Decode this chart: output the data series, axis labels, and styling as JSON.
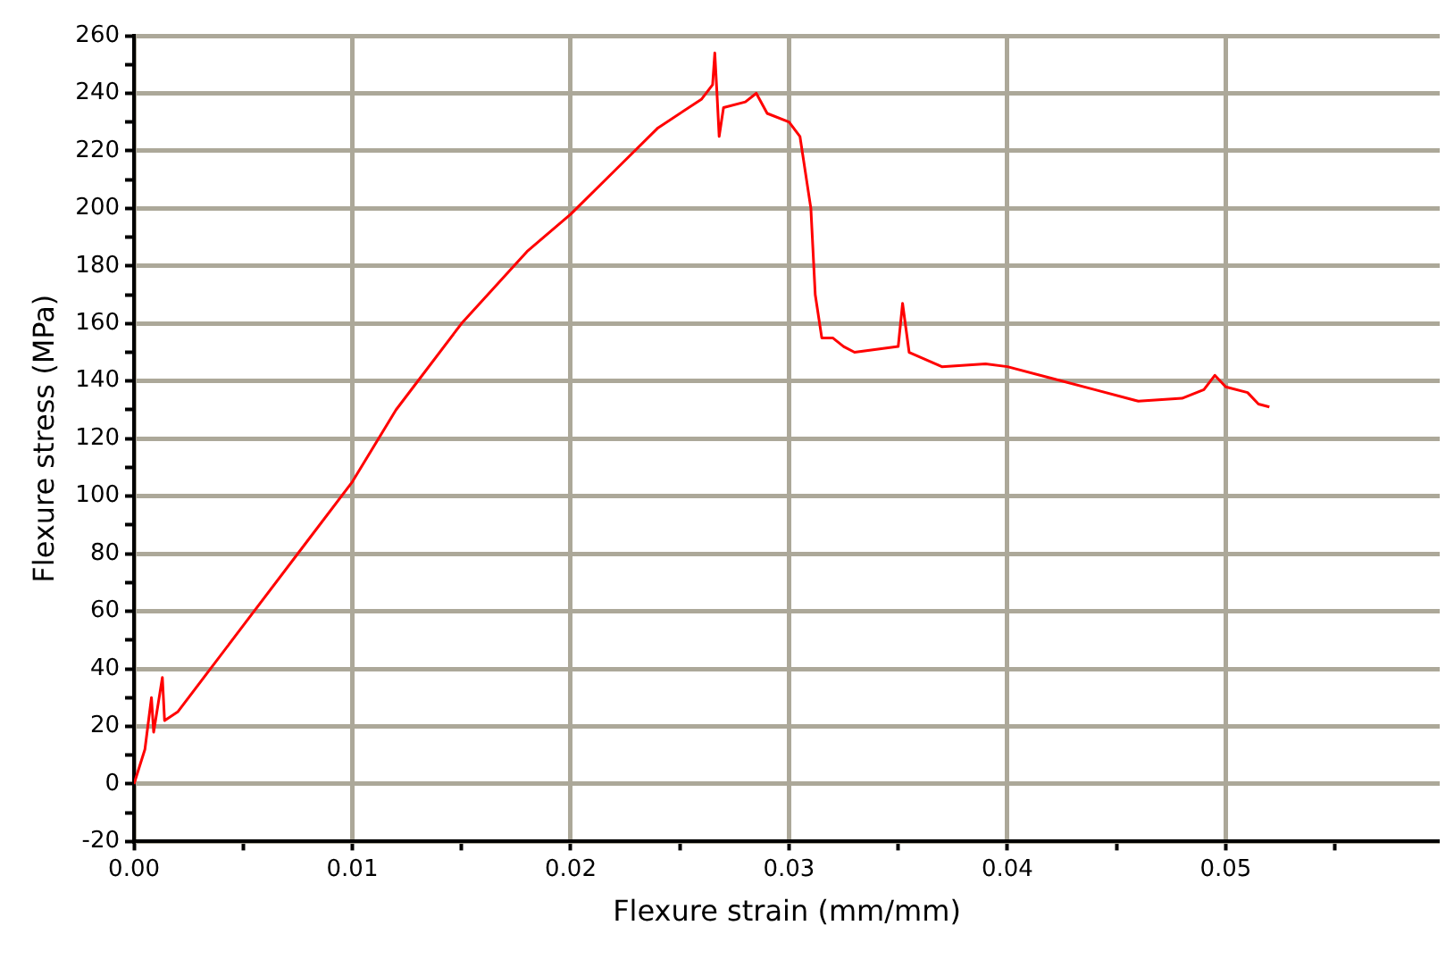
{
  "chart_data": {
    "type": "line",
    "xlabel": "Flexure strain (mm/mm)",
    "ylabel": "Flexure stress (MPa)",
    "xlim": [
      0,
      0.0598
    ],
    "ylim": [
      -20,
      260
    ],
    "xticks": [
      {
        "value": 0,
        "label": "0.00"
      },
      {
        "value": 0.005,
        "label": null
      },
      {
        "value": 0.01,
        "label": "0.01"
      },
      {
        "value": 0.015,
        "label": null
      },
      {
        "value": 0.02,
        "label": "0.02"
      },
      {
        "value": 0.025,
        "label": null
      },
      {
        "value": 0.03,
        "label": "0.03"
      },
      {
        "value": 0.035,
        "label": null
      },
      {
        "value": 0.04,
        "label": "0.04"
      },
      {
        "value": 0.045,
        "label": null
      },
      {
        "value": 0.05,
        "label": "0.05"
      },
      {
        "value": 0.055,
        "label": null
      }
    ],
    "yticks": [
      -20,
      {
        "value": -10,
        "label": null
      },
      0,
      {
        "value": 10,
        "label": null
      },
      20,
      {
        "value": 30,
        "label": null
      },
      40,
      {
        "value": 50,
        "label": null
      },
      60,
      {
        "value": 70,
        "label": null
      },
      80,
      {
        "value": 90,
        "label": null
      },
      100,
      {
        "value": 110,
        "label": null
      },
      120,
      {
        "value": 130,
        "label": null
      },
      140,
      {
        "value": 150,
        "label": null
      },
      160,
      {
        "value": 170,
        "label": null
      },
      180,
      {
        "value": 190,
        "label": null
      },
      200,
      {
        "value": 210,
        "label": null
      },
      220,
      {
        "value": 230,
        "label": null
      },
      240,
      {
        "value": 250,
        "label": null
      },
      260
    ],
    "grid": true,
    "marker": "none",
    "line_style": "solid",
    "x": [
      0,
      0.0005,
      0.0008,
      0.0009,
      0.0013,
      0.0014,
      0.002,
      0.005,
      0.008,
      0.01,
      0.012,
      0.015,
      0.018,
      0.02,
      0.022,
      0.024,
      0.026,
      0.0265,
      0.0266,
      0.0267,
      0.0268,
      0.027,
      0.028,
      0.0285,
      0.029,
      0.03,
      0.0305,
      0.031,
      0.0312,
      0.0315,
      0.032,
      0.0325,
      0.033,
      0.035,
      0.0352,
      0.0355,
      0.037,
      0.039,
      0.04,
      0.042,
      0.044,
      0.046,
      0.048,
      0.049,
      0.0495,
      0.05,
      0.051,
      0.0515,
      0.052
    ],
    "series": [
      {
        "color": "#ff0000",
        "values": [
          0,
          12,
          30,
          18,
          37,
          22,
          25,
          55,
          85,
          105,
          130,
          160,
          185,
          198,
          213,
          228,
          238,
          243,
          254,
          240,
          225,
          235,
          237,
          240,
          233,
          230,
          225,
          200,
          170,
          155,
          155,
          152,
          150,
          152,
          167,
          150,
          145,
          146,
          145,
          141,
          137,
          133,
          134,
          137,
          142,
          138,
          136,
          132,
          131
        ]
      }
    ]
  }
}
